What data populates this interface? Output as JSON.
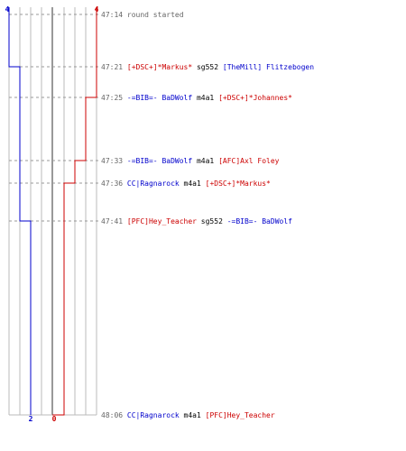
{
  "colors": {
    "blue_team": "#0000cc",
    "red_team": "#cc0000",
    "time": "#666666",
    "grid": "#bbbbbb",
    "center_line": "#555555",
    "guide": "#999999"
  },
  "score_labels": {
    "blue_start": "4",
    "red_start": "4",
    "blue_end": "2",
    "red_end": "0"
  },
  "events": [
    {
      "time": "47:14",
      "parts": [
        {
          "text": "round started",
          "team": "neutral"
        }
      ]
    },
    {
      "time": "47:21",
      "parts": [
        {
          "text": "[+DSC+]*Markus*",
          "team": "red"
        },
        {
          "text": "sg552",
          "team": "weapon"
        },
        {
          "text": "[TheMill] Flitzebogen",
          "team": "blue"
        }
      ]
    },
    {
      "time": "47:25",
      "parts": [
        {
          "text": "-=BIB=- BaDWolf",
          "team": "blue"
        },
        {
          "text": "m4a1",
          "team": "weapon"
        },
        {
          "text": "[+DSC+]*Johannes*",
          "team": "red"
        }
      ]
    },
    {
      "time": "47:33",
      "parts": [
        {
          "text": "-=BIB=- BaDWolf",
          "team": "blue"
        },
        {
          "text": "m4a1",
          "team": "weapon"
        },
        {
          "text": "[AFC]Axl Foley",
          "team": "red"
        }
      ]
    },
    {
      "time": "47:36",
      "parts": [
        {
          "text": "CC|Ragnarock",
          "team": "blue"
        },
        {
          "text": "m4a1",
          "team": "weapon"
        },
        {
          "text": "[+DSC+]*Markus*",
          "team": "red"
        }
      ]
    },
    {
      "time": "47:41",
      "parts": [
        {
          "text": "[PFC]Hey_Teacher",
          "team": "red"
        },
        {
          "text": "sg552",
          "team": "weapon"
        },
        {
          "text": "-=BIB=- BaDWolf",
          "team": "blue"
        }
      ]
    },
    {
      "time": "48:06",
      "parts": [
        {
          "text": "CC|Ragnarock",
          "team": "blue"
        },
        {
          "text": "m4a1",
          "team": "weapon"
        },
        {
          "text": "[PFC]Hey_Teacher",
          "team": "red"
        }
      ]
    }
  ],
  "blue_alive_after_event": [
    4,
    3,
    3,
    3,
    3,
    2,
    2
  ],
  "red_alive_after_event": [
    4,
    4,
    3,
    2,
    1,
    1,
    0
  ]
}
